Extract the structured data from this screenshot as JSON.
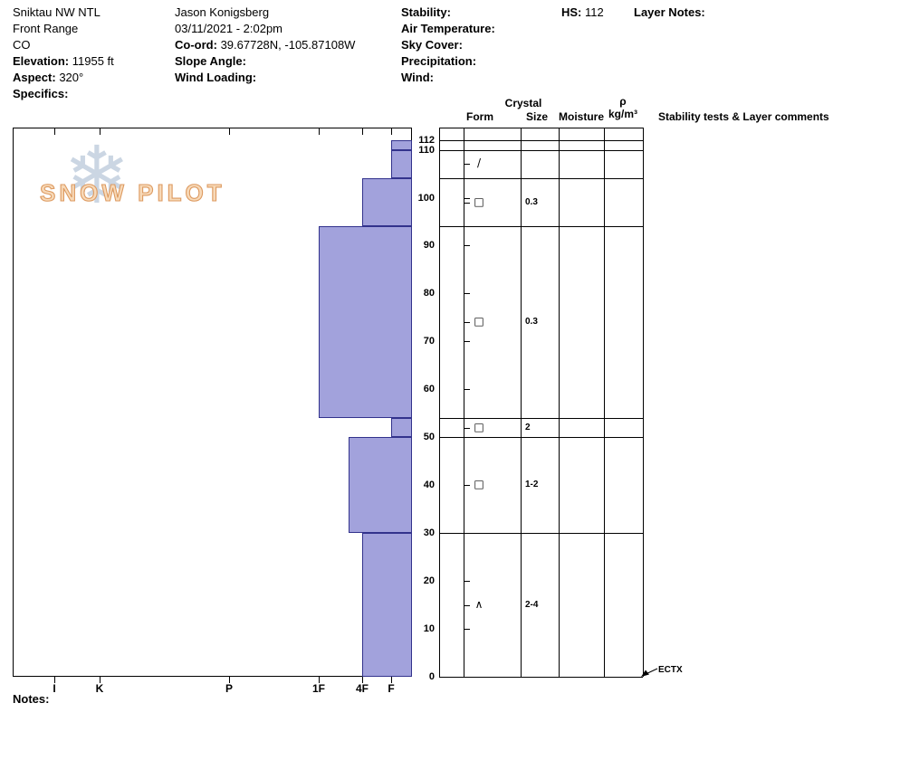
{
  "header": {
    "site": {
      "name": "Sniktau NW NTL",
      "range": "Front Range",
      "state": "CO",
      "elevation_label": "Elevation:",
      "elevation_value": "11955 ft",
      "aspect_label": "Aspect:",
      "aspect_value": "320°",
      "specifics_label": "Specifics:"
    },
    "observer": {
      "name": "Jason Konigsberg",
      "datetime": "03/11/2021 - 2:02pm",
      "coord_label": "Co-ord:",
      "coord_value": "39.67728N, -105.87108W",
      "slope_angle_label": "Slope Angle:",
      "wind_loading_label": "Wind Loading:"
    },
    "conditions": {
      "stability_label": "Stability:",
      "air_temp_label": "Air Temperature:",
      "sky_cover_label": "Sky Cover:",
      "precipitation_label": "Precipitation:",
      "wind_label": "Wind:"
    },
    "hs_label": "HS:",
    "hs_value": "112",
    "layer_notes_label": "Layer Notes:"
  },
  "watermark": {
    "text": "SNOW PILOT",
    "snowflake": "❄"
  },
  "table_headers": {
    "crystal": "Crystal",
    "form": "Form",
    "size": "Size",
    "moisture": "Moisture",
    "rho": "ρ",
    "rho_units": "kg/m³",
    "comments": "Stability tests & Layer comments"
  },
  "notes_label": "Notes:",
  "chart_data": {
    "type": "bar",
    "orientation": "horizontal",
    "y_axis_max": 112,
    "y_ticks": [
      112,
      110,
      100,
      90,
      80,
      70,
      60,
      50,
      40,
      30,
      20,
      10,
      0
    ],
    "hardness_axis": {
      "categories": [
        "I",
        "K",
        "P",
        "1F",
        "4F",
        "F"
      ]
    },
    "layers": [
      {
        "top": 112,
        "bottom": 110,
        "hardness": "F",
        "form": "",
        "size": "",
        "moisture": "",
        "density": ""
      },
      {
        "top": 110,
        "bottom": 104,
        "hardness": "F",
        "form": "/",
        "size": "",
        "moisture": "",
        "density": ""
      },
      {
        "top": 104,
        "bottom": 94,
        "hardness": "4F",
        "form": "□",
        "size": "0.3",
        "moisture": "",
        "density": ""
      },
      {
        "top": 94,
        "bottom": 54,
        "hardness": "1F",
        "form": "□",
        "size": "0.3",
        "moisture": "",
        "density": ""
      },
      {
        "top": 54,
        "bottom": 50,
        "hardness": "F",
        "form": "□",
        "size": "2",
        "moisture": "",
        "density": ""
      },
      {
        "top": 50,
        "bottom": 30,
        "hardness": "4F+",
        "form": "□",
        "size": "1-2",
        "moisture": "",
        "density": ""
      },
      {
        "top": 30,
        "bottom": 0,
        "hardness": "4F",
        "form": "∧",
        "size": "2-4",
        "moisture": "",
        "density": ""
      }
    ],
    "stability_tests": [
      {
        "label": "ECTX",
        "height": 0
      }
    ],
    "bar_fill": "#a2a2dc",
    "bar_border": "#32328c"
  }
}
